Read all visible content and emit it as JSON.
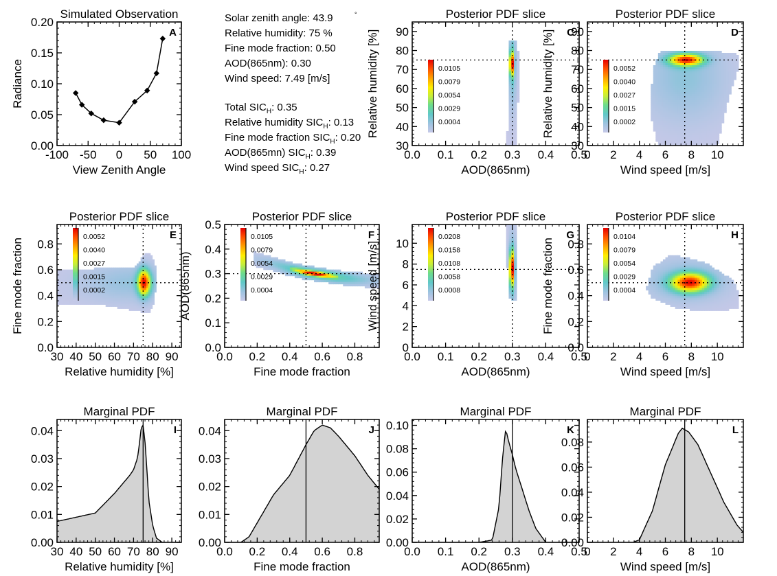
{
  "info": {
    "lines_top": [
      "Solar zenith angle:  43.9",
      "Relative humidity:  75 %",
      "Fine mode fraction:   0.50",
      "AOD(865nm):   0.30",
      "Wind speed:   7.49 [m/s]"
    ],
    "degree_mark": "°",
    "sic_lines": [
      {
        "pre": "Total SIC",
        "sub": "H",
        "post": ":  0.35"
      },
      {
        "pre": "Relative humidity SIC",
        "sub": "H",
        "post": ":  0.13"
      },
      {
        "pre": "Fine mode fraction SIC",
        "sub": "H",
        "post": ":  0.20"
      },
      {
        "pre": "AOD(865mn) SIC",
        "sub": "H",
        "post": ":  0.39"
      },
      {
        "pre": "Wind speed SIC",
        "sub": "H",
        "post": ":  0.27"
      }
    ]
  },
  "colors": {
    "fill": "#d3d3d3",
    "line": "#000000",
    "colormap": [
      "#c7c9e8",
      "#9ec3e0",
      "#60c8c8",
      "#6ddc8a",
      "#c6ee3a",
      "#ffee00",
      "#ffa000",
      "#ff4d00",
      "#e60000"
    ]
  },
  "chart_data": [
    {
      "id": "A",
      "type": "line",
      "title": "Simulated Observation",
      "xlabel": "View Zenith Angle",
      "ylabel": "Radiance",
      "xlim": [
        -100,
        100
      ],
      "ylim": [
        0,
        0.2
      ],
      "xticks": [
        -100,
        -50,
        0,
        50,
        100
      ],
      "xtick_labels": [
        "-100",
        "-50",
        "0",
        "50",
        "100"
      ],
      "yticks": [
        0,
        0.05,
        0.1,
        0.15,
        0.2
      ],
      "ytick_labels": [
        "0.00",
        "0.05",
        "0.10",
        "0.15",
        "0.20"
      ],
      "x": [
        -70,
        -60,
        -45,
        -25,
        0,
        25,
        45,
        60,
        70
      ],
      "y": [
        0.085,
        0.066,
        0.052,
        0.041,
        0.037,
        0.071,
        0.089,
        0.117,
        0.173
      ]
    },
    {
      "id": "C",
      "type": "heatmap",
      "title": "Posterior PDF slice",
      "xlabel": "AOD(865nm)",
      "ylabel": "Relative humidity [%]",
      "xlim": [
        0,
        0.5
      ],
      "ylim": [
        30,
        95
      ],
      "xticks": [
        0,
        0.1,
        0.2,
        0.3,
        0.4,
        0.5
      ],
      "xtick_labels": [
        "0.0",
        "0.1",
        "0.2",
        "0.3",
        "0.4",
        "0.5"
      ],
      "yticks": [
        30,
        40,
        50,
        60,
        70,
        80,
        90
      ],
      "ytick_labels": [
        "30",
        "40",
        "50",
        "60",
        "70",
        "80",
        "90"
      ],
      "ref_x": 0.3,
      "ref_y": 75,
      "colorbar_labels": [
        "0.0105",
        "0.0079",
        "0.0054",
        "0.0029",
        "0.0004"
      ],
      "blobs": [
        {
          "cx": 0.3,
          "cy": 72,
          "sx": 0.008,
          "sy": 15,
          "w": 0.25
        },
        {
          "cx": 0.298,
          "cy": 73,
          "sx": 0.004,
          "sy": 4,
          "w": 1
        }
      ],
      "mask": [
        [
          0.285,
          30
        ],
        [
          0.315,
          30
        ],
        [
          0.318,
          78
        ],
        [
          0.312,
          85
        ],
        [
          0.292,
          85
        ],
        [
          0.286,
          76
        ]
      ]
    },
    {
      "id": "D",
      "type": "heatmap",
      "title": "Posterior PDF slice",
      "xlabel": "Wind speed [m/s]",
      "ylabel": "Relative humidity [%]",
      "xlim": [
        0,
        12
      ],
      "ylim": [
        30,
        95
      ],
      "xticks": [
        0,
        2,
        4,
        6,
        8,
        10
      ],
      "xtick_labels": [
        "0",
        "2",
        "4",
        "6",
        "8",
        "10"
      ],
      "yticks": [
        30,
        40,
        50,
        60,
        70,
        80,
        90
      ],
      "ytick_labels": [
        "30",
        "40",
        "50",
        "60",
        "70",
        "80",
        "90"
      ],
      "ref_x": 7.49,
      "ref_y": 75,
      "colorbar_labels": [
        "0.0052",
        "0.0040",
        "0.0027",
        "0.0015",
        "0.0002"
      ],
      "blobs": [
        {
          "cx": 7.5,
          "cy": 66,
          "sx": 2.2,
          "sy": 16,
          "w": 0.18
        },
        {
          "cx": 7.6,
          "cy": 75,
          "sx": 0.9,
          "sy": 2.2,
          "w": 1
        }
      ],
      "mask": [
        [
          4.9,
          45
        ],
        [
          5.0,
          70
        ],
        [
          5.6,
          80
        ],
        [
          9.5,
          80
        ],
        [
          11.6,
          78
        ],
        [
          11.6,
          70
        ],
        [
          11.0,
          58
        ],
        [
          10.5,
          45
        ],
        [
          10.0,
          30
        ],
        [
          5.4,
          30
        ]
      ]
    },
    {
      "id": "E",
      "type": "heatmap",
      "title": "Posterior PDF slice",
      "xlabel": "Relative humidity [%]",
      "ylabel": "Fine mode fraction",
      "xlim": [
        30,
        95
      ],
      "ylim": [
        0,
        0.95
      ],
      "xticks": [
        30,
        40,
        50,
        60,
        70,
        80,
        90
      ],
      "xtick_labels": [
        "30",
        "40",
        "50",
        "60",
        "70",
        "80",
        "90"
      ],
      "yticks": [
        0,
        0.2,
        0.4,
        0.6,
        0.8
      ],
      "ytick_labels": [
        "0.0",
        "0.2",
        "0.4",
        "0.6",
        "0.8"
      ],
      "ref_x": 75,
      "ref_y": 0.5,
      "colorbar_labels": [
        "0.0052",
        "0.0040",
        "0.0027",
        "0.0015",
        "0.0002"
      ],
      "blobs": [
        {
          "cx": 68,
          "cy": 0.5,
          "sx": 18,
          "sy": 0.1,
          "w": 0.16
        },
        {
          "cx": 75.5,
          "cy": 0.5,
          "sx": 2.3,
          "sy": 0.07,
          "w": 1
        }
      ],
      "mask": [
        [
          30,
          0.34
        ],
        [
          30,
          0.6
        ],
        [
          70,
          0.62
        ],
        [
          76,
          0.72
        ],
        [
          79,
          0.73
        ],
        [
          82,
          0.6
        ],
        [
          81,
          0.35
        ],
        [
          78,
          0.27
        ],
        [
          72,
          0.28
        ],
        [
          50,
          0.34
        ]
      ]
    },
    {
      "id": "F",
      "type": "heatmap",
      "title": "Posterior PDF slice",
      "xlabel": "Fine mode fraction",
      "ylabel": "AOD(865nm)",
      "xlim": [
        0,
        0.95
      ],
      "ylim": [
        0,
        0.5
      ],
      "xticks": [
        0,
        0.2,
        0.4,
        0.6,
        0.8
      ],
      "xtick_labels": [
        "0.0",
        "0.2",
        "0.4",
        "0.6",
        "0.8"
      ],
      "yticks": [
        0,
        0.1,
        0.2,
        0.3,
        0.4,
        0.5
      ],
      "ytick_labels": [
        "0.0",
        "0.1",
        "0.2",
        "0.3",
        "0.4",
        "0.5"
      ],
      "ref_x": 0.5,
      "ref_y": 0.3,
      "colorbar_labels": [
        "0.0105",
        "0.0079",
        "0.0054",
        "0.0029",
        "0.0004"
      ],
      "bands": [
        {
          "x": [
            0.18,
            0.3,
            0.4,
            0.5,
            0.6,
            0.7,
            0.8,
            0.95
          ],
          "yc": [
            0.36,
            0.34,
            0.32,
            0.305,
            0.295,
            0.285,
            0.278,
            0.27
          ],
          "hw": 0.018,
          "xc": 0.58,
          "xs": 0.22,
          "w": 0.5
        },
        {
          "x": [
            0.4,
            0.5,
            0.6,
            0.7
          ],
          "yc": [
            0.32,
            0.305,
            0.295,
            0.285
          ],
          "hw": 0.006,
          "xc": 0.55,
          "xs": 0.08,
          "w": 1
        }
      ]
    },
    {
      "id": "G",
      "type": "heatmap",
      "title": "Posterior PDF slice",
      "xlabel": "AOD(865nm)",
      "ylabel": "Wind speed [m/s]",
      "xlim": [
        0,
        0.5
      ],
      "ylim": [
        0,
        11.8
      ],
      "xticks": [
        0,
        0.1,
        0.2,
        0.3,
        0.4,
        0.5
      ],
      "xtick_labels": [
        "0.0",
        "0.1",
        "0.2",
        "0.3",
        "0.4",
        "0.5"
      ],
      "yticks": [
        0,
        2,
        4,
        6,
        8,
        10
      ],
      "ytick_labels": [
        "0",
        "2",
        "4",
        "6",
        "8",
        "10"
      ],
      "ref_x": 0.3,
      "ref_y": 7.49,
      "colorbar_labels": [
        "0.0208",
        "0.0158",
        "0.0108",
        "0.0058",
        "0.0008"
      ],
      "blobs": [
        {
          "cx": 0.3,
          "cy": 7.5,
          "sx": 0.008,
          "sy": 2.2,
          "w": 0.3
        },
        {
          "cx": 0.298,
          "cy": 7.6,
          "sx": 0.004,
          "sy": 1.1,
          "w": 1
        }
      ],
      "mask": [
        [
          0.286,
          4.7
        ],
        [
          0.312,
          4.5
        ],
        [
          0.316,
          11.8
        ],
        [
          0.284,
          11.8
        ]
      ]
    },
    {
      "id": "H",
      "type": "heatmap",
      "title": "Posterior PDF slice",
      "xlabel": "Wind speed [m/s]",
      "ylabel": "Fine mode fraction",
      "xlim": [
        0,
        12
      ],
      "ylim": [
        0,
        0.95
      ],
      "xticks": [
        0,
        2,
        4,
        6,
        8,
        10
      ],
      "xtick_labels": [
        "0",
        "2",
        "4",
        "6",
        "8",
        "10"
      ],
      "yticks": [
        0,
        0.2,
        0.4,
        0.6,
        0.8
      ],
      "ytick_labels": [
        "0.0",
        "0.2",
        "0.4",
        "0.6",
        "0.8"
      ],
      "ref_x": 7.49,
      "ref_y": 0.5,
      "colorbar_labels": [
        "0.0104",
        "0.0079",
        "0.0054",
        "0.0029",
        "0.0004"
      ],
      "blobs": [
        {
          "cx": 7.6,
          "cy": 0.52,
          "sx": 2.3,
          "sy": 0.12,
          "w": 0.18
        },
        {
          "cx": 7.9,
          "cy": 0.5,
          "sx": 1.0,
          "sy": 0.05,
          "w": 1
        }
      ],
      "mask": [
        [
          4.5,
          0.45
        ],
        [
          5.0,
          0.62
        ],
        [
          6.5,
          0.72
        ],
        [
          9.0,
          0.66
        ],
        [
          11.2,
          0.52
        ],
        [
          11.6,
          0.42
        ],
        [
          11.6,
          0.3
        ],
        [
          9.5,
          0.28
        ],
        [
          7.0,
          0.3
        ],
        [
          5.0,
          0.38
        ]
      ]
    },
    {
      "id": "I",
      "type": "area",
      "title": "Marginal PDF",
      "xlabel": "Relative humidity [%]",
      "ylabel": "",
      "xlim": [
        30,
        95
      ],
      "ylim": [
        0,
        0.044
      ],
      "xticks": [
        30,
        40,
        50,
        60,
        70,
        80,
        90
      ],
      "xtick_labels": [
        "30",
        "40",
        "50",
        "60",
        "70",
        "80",
        "90"
      ],
      "yticks": [
        0,
        0.01,
        0.02,
        0.03,
        0.04
      ],
      "ytick_labels": [
        "0.00",
        "0.01",
        "0.02",
        "0.03",
        "0.04"
      ],
      "ref_x": 75,
      "x": [
        30,
        40,
        50,
        60,
        68,
        70,
        72,
        73,
        74,
        75,
        76,
        77,
        78,
        80,
        82,
        85,
        95
      ],
      "y": [
        0.0075,
        0.009,
        0.0105,
        0.0175,
        0.024,
        0.026,
        0.03,
        0.035,
        0.041,
        0.042,
        0.036,
        0.026,
        0.015,
        0.006,
        0.0015,
        0.0,
        0.0
      ]
    },
    {
      "id": "J",
      "type": "area",
      "title": "Marginal PDF",
      "xlabel": "Fine mode fraction",
      "ylabel": "",
      "xlim": [
        0,
        0.95
      ],
      "ylim": [
        0,
        0.044
      ],
      "xticks": [
        0,
        0.2,
        0.4,
        0.6,
        0.8
      ],
      "xtick_labels": [
        "0.0",
        "0.2",
        "0.4",
        "0.6",
        "0.8"
      ],
      "yticks": [
        0,
        0.01,
        0.02,
        0.03,
        0.04
      ],
      "ytick_labels": [
        "0.00",
        "0.01",
        "0.02",
        "0.03",
        "0.04"
      ],
      "ref_x": 0.5,
      "x": [
        0.0,
        0.1,
        0.15,
        0.2,
        0.25,
        0.3,
        0.4,
        0.5,
        0.55,
        0.6,
        0.65,
        0.7,
        0.8,
        0.88,
        0.95
      ],
      "y": [
        0.0,
        0.0,
        0.002,
        0.007,
        0.012,
        0.017,
        0.024,
        0.035,
        0.04,
        0.042,
        0.041,
        0.038,
        0.031,
        0.024,
        0.019
      ]
    },
    {
      "id": "K",
      "type": "area",
      "title": "Marginal PDF",
      "xlabel": "AOD(865nm)",
      "ylabel": "",
      "xlim": [
        0,
        0.5
      ],
      "ylim": [
        0,
        0.105
      ],
      "xticks": [
        0,
        0.1,
        0.2,
        0.3,
        0.4,
        0.5
      ],
      "xtick_labels": [
        "0.0",
        "0.1",
        "0.2",
        "0.3",
        "0.4",
        "0.5"
      ],
      "yticks": [
        0,
        0.02,
        0.04,
        0.06,
        0.08,
        0.1
      ],
      "ytick_labels": [
        "0.00",
        "0.02",
        "0.04",
        "0.06",
        "0.08",
        "0.10"
      ],
      "ref_x": 0.3,
      "x": [
        0.0,
        0.2,
        0.24,
        0.26,
        0.27,
        0.28,
        0.29,
        0.3,
        0.31,
        0.33,
        0.35,
        0.37,
        0.4,
        0.5
      ],
      "y": [
        0.0,
        0.0,
        0.002,
        0.03,
        0.07,
        0.097,
        0.085,
        0.075,
        0.063,
        0.045,
        0.027,
        0.012,
        0.0,
        0.0
      ]
    },
    {
      "id": "L",
      "type": "area",
      "title": "Marginal PDF",
      "xlabel": "Wind speed [m/s]",
      "ylabel": "",
      "xlim": [
        0,
        12
      ],
      "ylim": [
        0,
        0.098
      ],
      "xticks": [
        0,
        2,
        4,
        6,
        8,
        10
      ],
      "xtick_labels": [
        "0",
        "2",
        "4",
        "6",
        "8",
        "10"
      ],
      "yticks": [
        0,
        0.02,
        0.04,
        0.06,
        0.08
      ],
      "ytick_labels": [
        "0.00",
        "0.02",
        "0.04",
        "0.06",
        "0.08"
      ],
      "ref_x": 7.49,
      "x": [
        0,
        3.5,
        4,
        5,
        6,
        7,
        7.3,
        7.8,
        8.5,
        9.5,
        10.5,
        11.5,
        12
      ],
      "y": [
        0,
        0,
        0.002,
        0.025,
        0.062,
        0.087,
        0.091,
        0.088,
        0.078,
        0.055,
        0.032,
        0.014,
        0.008
      ]
    }
  ]
}
